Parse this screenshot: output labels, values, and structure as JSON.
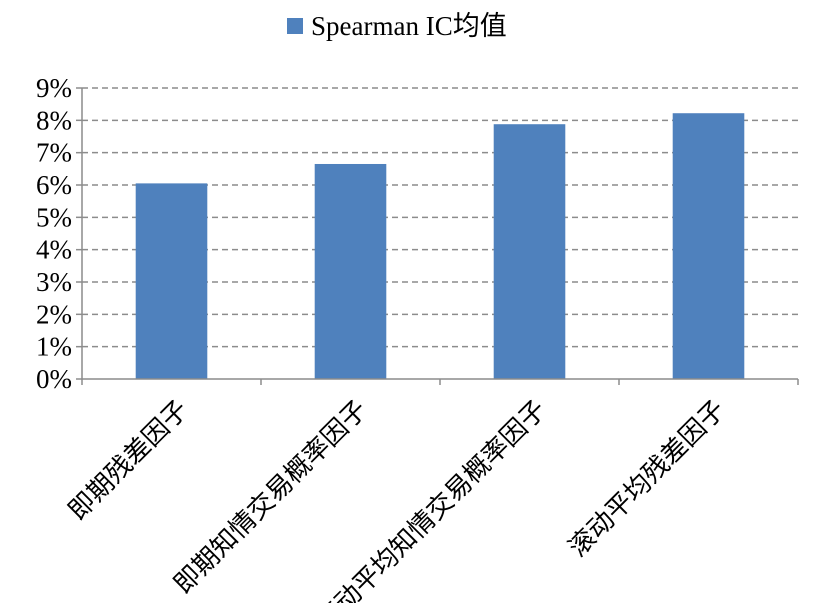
{
  "chart_data": {
    "type": "bar",
    "categories": [
      "即期残差因子",
      "即期知情交易概率因子",
      "滚动平均知情交易概率因子",
      "滚动平均残差因子"
    ],
    "series": [
      {
        "name": "Spearman IC均值",
        "values": [
          6.05,
          6.65,
          7.88,
          8.22
        ],
        "color": "#4f81bd"
      }
    ],
    "y_unit": "%",
    "ylim": [
      0,
      9
    ],
    "yticks": [
      0,
      1,
      2,
      3,
      4,
      5,
      6,
      7,
      8,
      9
    ],
    "ytick_labels": [
      "0%",
      "1%",
      "2%",
      "3%",
      "4%",
      "5%",
      "6%",
      "7%",
      "8%",
      "9%"
    ],
    "grid": true,
    "legend_position": "top-center"
  }
}
